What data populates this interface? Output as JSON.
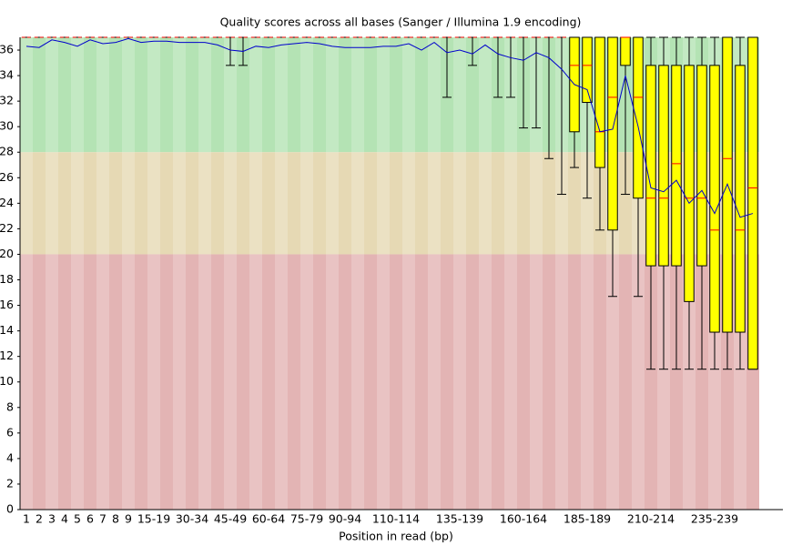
{
  "chart_data": {
    "type": "box",
    "title": "Quality scores across all bases (Sanger / Illumina 1.9 encoding)",
    "x_label": "Position in read (bp)",
    "categories": [
      "1",
      "2",
      "3",
      "4",
      "5",
      "6",
      "7",
      "8",
      "9",
      null,
      "15-19",
      null,
      null,
      "30-34",
      null,
      null,
      "45-49",
      null,
      null,
      "60-64",
      null,
      null,
      "75-79",
      null,
      null,
      "90-94",
      null,
      null,
      null,
      "110-114",
      null,
      null,
      null,
      null,
      "135-139",
      null,
      null,
      null,
      null,
      "160-164",
      null,
      null,
      null,
      null,
      "185-189",
      null,
      null,
      null,
      null,
      "210-214",
      null,
      null,
      null,
      null,
      "235-239",
      null,
      null,
      null
    ],
    "ylim": [
      0,
      37
    ],
    "yticks": [
      0,
      2,
      4,
      6,
      8,
      10,
      12,
      14,
      16,
      18,
      20,
      22,
      24,
      26,
      28,
      30,
      32,
      34,
      36
    ],
    "zones": [
      {
        "from": 28,
        "to": 37,
        "color": "#b4e3b4"
      },
      {
        "from": 20,
        "to": 28,
        "color": "#e6d9b4"
      },
      {
        "from": 0,
        "to": 20,
        "color": "#e3b4b4"
      }
    ],
    "box_color": "#ffff00",
    "median_color": "#ff0000",
    "mean_color": "#0000cc",
    "lower_whiskers": [
      37,
      37,
      37,
      37,
      37,
      37,
      37,
      37,
      37,
      37,
      37,
      37,
      37,
      37,
      37,
      37,
      34.8,
      34.8,
      37,
      37,
      37,
      37,
      37,
      37,
      37,
      37,
      37,
      37,
      37,
      37,
      37,
      37,
      37,
      32.3,
      37,
      34.8,
      37,
      32.3,
      32.3,
      29.9,
      29.9,
      27.5,
      24.7,
      26.8,
      24.4,
      21.9,
      16.7,
      24.7,
      16.7,
      11,
      11,
      11,
      11,
      11,
      11,
      11,
      11,
      11
    ],
    "lower_quartiles": [
      37,
      37,
      37,
      37,
      37,
      37,
      37,
      37,
      37,
      37,
      37,
      37,
      37,
      37,
      37,
      37,
      37,
      37,
      37,
      37,
      37,
      37,
      37,
      37,
      37,
      37,
      37,
      37,
      37,
      37,
      37,
      37,
      37,
      37,
      37,
      37,
      37,
      37,
      37,
      37,
      37,
      37,
      37,
      29.6,
      31.9,
      26.8,
      21.9,
      34.8,
      24.4,
      19.1,
      19.1,
      19.1,
      16.3,
      19.1,
      13.9,
      13.9,
      13.9,
      11
    ],
    "medians": [
      37,
      37,
      37,
      37,
      37,
      37,
      37,
      37,
      37,
      37,
      37,
      37,
      37,
      37,
      37,
      37,
      37,
      37,
      37,
      37,
      37,
      37,
      37,
      37,
      37,
      37,
      37,
      37,
      37,
      37,
      37,
      37,
      37,
      37,
      37,
      37,
      37,
      37,
      37,
      37,
      37,
      37,
      37,
      34.8,
      34.8,
      29.6,
      32.3,
      37,
      32.3,
      24.4,
      24.4,
      27.1,
      24.4,
      24.4,
      21.9,
      27.5,
      21.9,
      25.2
    ],
    "upper_quartiles": [
      37,
      37,
      37,
      37,
      37,
      37,
      37,
      37,
      37,
      37,
      37,
      37,
      37,
      37,
      37,
      37,
      37,
      37,
      37,
      37,
      37,
      37,
      37,
      37,
      37,
      37,
      37,
      37,
      37,
      37,
      37,
      37,
      37,
      37,
      37,
      37,
      37,
      37,
      37,
      37,
      37,
      37,
      37,
      37,
      37,
      37,
      37,
      37,
      37,
      34.8,
      34.8,
      34.8,
      34.8,
      34.8,
      34.8,
      37,
      34.8,
      37
    ],
    "upper_whiskers": [
      37,
      37,
      37,
      37,
      37,
      37,
      37,
      37,
      37,
      37,
      37,
      37,
      37,
      37,
      37,
      37,
      37,
      37,
      37,
      37,
      37,
      37,
      37,
      37,
      37,
      37,
      37,
      37,
      37,
      37,
      37,
      37,
      37,
      37,
      37,
      37,
      37,
      37,
      37,
      37,
      37,
      37,
      37,
      37,
      37,
      37,
      37,
      37,
      37,
      37,
      37,
      37,
      37,
      37,
      37,
      37,
      37,
      37
    ],
    "means": [
      36.3,
      36.2,
      36.8,
      36.6,
      36.3,
      36.8,
      36.5,
      36.6,
      36.9,
      36.6,
      36.7,
      36.7,
      36.6,
      36.6,
      36.6,
      36.4,
      36.0,
      35.9,
      36.3,
      36.2,
      36.4,
      36.5,
      36.6,
      36.5,
      36.3,
      36.2,
      36.2,
      36.2,
      36.3,
      36.3,
      36.5,
      36.0,
      36.6,
      35.8,
      36.0,
      35.7,
      36.4,
      35.7,
      35.4,
      35.2,
      35.8,
      35.4,
      34.5,
      33.3,
      32.9,
      29.6,
      29.8,
      34.0,
      30.0,
      25.2,
      24.9,
      25.8,
      24.0,
      25.0,
      23.2,
      25.5,
      22.9,
      23.2
    ]
  }
}
